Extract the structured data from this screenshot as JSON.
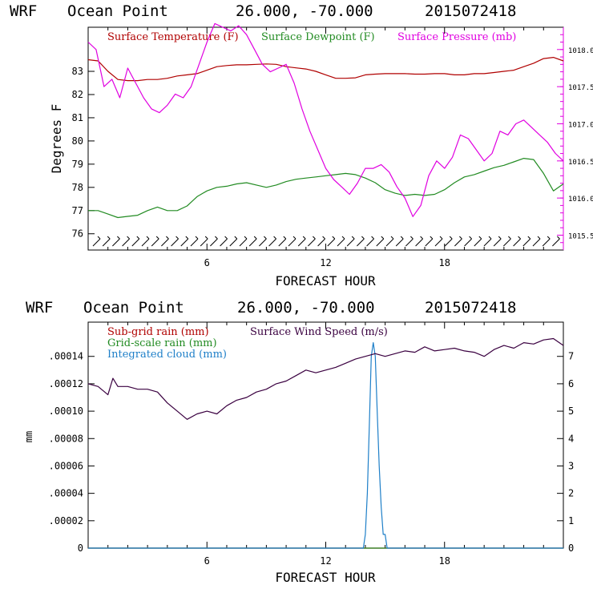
{
  "colors": {
    "temperature": "#b00000",
    "dewpoint": "#228b22",
    "pressure": "#e000e0",
    "subgrid_rain": "#b00000",
    "gridscale_rain": "#228b22",
    "cloud": "#1e7fc8",
    "wind": "#3a0040"
  },
  "chart_data": [
    {
      "type": "line",
      "header": {
        "model": "WRF",
        "location": "Ocean Point",
        "coords": "26.000, -70.000",
        "date": "2015072418"
      },
      "xlabel": "FORECAST HOUR",
      "ylabel": "Degrees F",
      "xlim": [
        0,
        24
      ],
      "ylim": [
        75.3,
        84.9
      ],
      "y2lim": [
        1015.3,
        1018.3
      ],
      "xticks": [
        "6",
        "12",
        "18"
      ],
      "yticks": [
        "76",
        "77",
        "78",
        "79",
        "80",
        "81",
        "82",
        "83"
      ],
      "y2ticks": [
        "1015.5",
        "1016.0",
        "1016.5",
        "1017.0",
        "1017.5",
        "1018.0"
      ],
      "legend": [
        "Surface Temperature (F)",
        "Surface Dewpoint (F)",
        "Surface Pressure (mb)"
      ],
      "series": [
        {
          "name": "Surface Temperature (F)",
          "axis": "left",
          "x": [
            0,
            0.5,
            1,
            1.5,
            2,
            2.5,
            3,
            3.5,
            4,
            4.5,
            5,
            5.5,
            6,
            6.5,
            7,
            7.5,
            8,
            8.5,
            9,
            9.5,
            10,
            10.5,
            11,
            11.5,
            12,
            12.5,
            13,
            13.5,
            14,
            14.5,
            15,
            15.5,
            16,
            16.5,
            17,
            17.5,
            18,
            18.5,
            19,
            19.5,
            20,
            20.5,
            21,
            21.5,
            22,
            22.5,
            23,
            23.5,
            24
          ],
          "values": [
            83.5,
            83.45,
            83.0,
            82.65,
            82.6,
            82.6,
            82.65,
            82.65,
            82.7,
            82.8,
            82.85,
            82.9,
            83.05,
            83.2,
            83.25,
            83.28,
            83.28,
            83.3,
            83.32,
            83.3,
            83.2,
            83.15,
            83.1,
            83.0,
            82.85,
            82.7,
            82.7,
            82.72,
            82.85,
            82.88,
            82.9,
            82.9,
            82.9,
            82.88,
            82.88,
            82.9,
            82.9,
            82.85,
            82.85,
            82.9,
            82.9,
            82.95,
            83.0,
            83.05,
            83.2,
            83.35,
            83.55,
            83.6,
            83.45
          ]
        },
        {
          "name": "Surface Dewpoint (F)",
          "axis": "left",
          "x": [
            0,
            0.5,
            1,
            1.5,
            2,
            2.5,
            3,
            3.5,
            4,
            4.5,
            5,
            5.5,
            6,
            6.5,
            7,
            7.5,
            8,
            8.5,
            9,
            9.5,
            10,
            10.5,
            11,
            11.5,
            12,
            12.5,
            13,
            13.5,
            14,
            14.5,
            15,
            15.5,
            16,
            16.5,
            17,
            17.5,
            18,
            18.5,
            19,
            19.5,
            20,
            20.5,
            21,
            21.5,
            22,
            22.5,
            23,
            23.5,
            24
          ],
          "values": [
            77.0,
            77.0,
            76.85,
            76.7,
            76.75,
            76.8,
            77.0,
            77.15,
            77.0,
            77.0,
            77.2,
            77.6,
            77.85,
            78.0,
            78.05,
            78.15,
            78.2,
            78.1,
            78.0,
            78.1,
            78.25,
            78.35,
            78.4,
            78.45,
            78.5,
            78.55,
            78.6,
            78.55,
            78.4,
            78.2,
            77.9,
            77.75,
            77.65,
            77.7,
            77.65,
            77.7,
            77.9,
            78.2,
            78.45,
            78.55,
            78.7,
            78.85,
            78.95,
            79.1,
            79.25,
            79.2,
            78.6,
            77.85,
            78.15
          ]
        },
        {
          "name": "Surface Pressure (mb)",
          "axis": "right",
          "x": [
            0,
            0.4,
            0.8,
            1.2,
            1.6,
            2,
            2.4,
            2.8,
            3.2,
            3.6,
            4,
            4.4,
            4.8,
            5.2,
            5.6,
            6,
            6.4,
            6.8,
            7.2,
            7.6,
            8,
            8.4,
            8.8,
            9.2,
            9.6,
            10,
            10.4,
            10.8,
            11.2,
            11.6,
            12,
            12.4,
            12.8,
            13.2,
            13.6,
            14,
            14.4,
            14.8,
            15.2,
            15.6,
            16,
            16.4,
            16.8,
            17.2,
            17.6,
            18,
            18.4,
            18.8,
            19.2,
            19.6,
            20,
            20.4,
            20.8,
            21.2,
            21.6,
            22,
            22.4,
            22.8,
            23.2,
            23.6,
            24
          ],
          "values": [
            1018.1,
            1018.0,
            1017.5,
            1017.6,
            1017.35,
            1017.75,
            1017.55,
            1017.35,
            1017.2,
            1017.15,
            1017.25,
            1017.4,
            1017.35,
            1017.5,
            1017.8,
            1018.1,
            1018.35,
            1018.3,
            1018.25,
            1018.32,
            1018.2,
            1018.0,
            1017.8,
            1017.7,
            1017.75,
            1017.8,
            1017.55,
            1017.2,
            1016.9,
            1016.65,
            1016.4,
            1016.25,
            1016.15,
            1016.05,
            1016.2,
            1016.4,
            1016.4,
            1016.45,
            1016.35,
            1016.15,
            1016.0,
            1015.75,
            1015.9,
            1016.3,
            1016.5,
            1016.4,
            1016.55,
            1016.85,
            1016.8,
            1016.65,
            1016.5,
            1016.6,
            1016.9,
            1016.85,
            1017.0,
            1017.05,
            1016.95,
            1016.85,
            1016.75,
            1016.6,
            1016.5
          ]
        }
      ],
      "wind_barbs": "row of wind barbs along the bottom of the panel"
    },
    {
      "type": "line",
      "header": {
        "model": "WRF",
        "location": "Ocean Point",
        "coords": "26.000, -70.000",
        "date": "2015072418"
      },
      "xlabel": "FORECAST HOUR",
      "ylabel": "mm",
      "xlim": [
        0,
        24
      ],
      "ylim": [
        0,
        0.000165
      ],
      "y2lim": [
        0,
        8.25
      ],
      "xticks": [
        "6",
        "12",
        "18"
      ],
      "yticks": [
        ".00014",
        ".00012",
        ".00010",
        ".00008",
        ".00006",
        ".00004",
        ".00002",
        "0"
      ],
      "y2ticks": [
        "7",
        "6",
        "5",
        "4",
        "3",
        "2",
        "1",
        "0"
      ],
      "legend": [
        "Sub-grid rain (mm)",
        "Grid-scale rain (mm)",
        "Integrated cloud (mm)",
        "Surface Wind Speed (m/s)"
      ],
      "series": [
        {
          "name": "Sub-grid rain (mm)",
          "axis": "left",
          "x": [
            0,
            24
          ],
          "values": [
            0,
            0
          ]
        },
        {
          "name": "Grid-scale rain (mm)",
          "axis": "left",
          "x": [
            0,
            24
          ],
          "values": [
            0,
            0
          ]
        },
        {
          "name": "Integrated cloud (mm)",
          "axis": "left",
          "x": [
            0,
            13.9,
            14.0,
            14.1,
            14.2,
            14.3,
            14.4,
            14.5,
            14.6,
            14.7,
            14.8,
            14.9,
            15.0,
            15.1,
            24
          ],
          "values": [
            0,
            0,
            1e-05,
            4e-05,
            9e-05,
            0.00014,
            0.00015,
            0.00014,
            0.0001,
            6e-05,
            3e-05,
            1e-05,
            1e-05,
            0,
            0
          ]
        },
        {
          "name": "Surface Wind Speed (m/s)",
          "axis": "right",
          "x": [
            0,
            0.5,
            1,
            1.25,
            1.5,
            2,
            2.5,
            3,
            3.5,
            4,
            4.5,
            5,
            5.5,
            6,
            6.5,
            7,
            7.5,
            8,
            8.5,
            9,
            9.5,
            10,
            10.5,
            11,
            11.5,
            12,
            12.5,
            13,
            13.5,
            14,
            14.5,
            15,
            15.5,
            16,
            16.5,
            17,
            17.5,
            18,
            18.5,
            19,
            19.5,
            20,
            20.5,
            21,
            21.5,
            22,
            22.5,
            23,
            23.5,
            24
          ],
          "values": [
            6.0,
            5.9,
            5.6,
            6.2,
            5.9,
            5.9,
            5.8,
            5.8,
            5.7,
            5.3,
            5.0,
            4.7,
            4.9,
            5.0,
            4.9,
            5.2,
            5.4,
            5.5,
            5.7,
            5.8,
            6.0,
            6.1,
            6.3,
            6.5,
            6.4,
            6.5,
            6.6,
            6.75,
            6.9,
            7.0,
            7.1,
            7.0,
            7.1,
            7.2,
            7.15,
            7.35,
            7.2,
            7.25,
            7.3,
            7.2,
            7.15,
            7.0,
            7.25,
            7.4,
            7.3,
            7.5,
            7.45,
            7.6,
            7.65,
            7.4
          ]
        }
      ]
    }
  ]
}
